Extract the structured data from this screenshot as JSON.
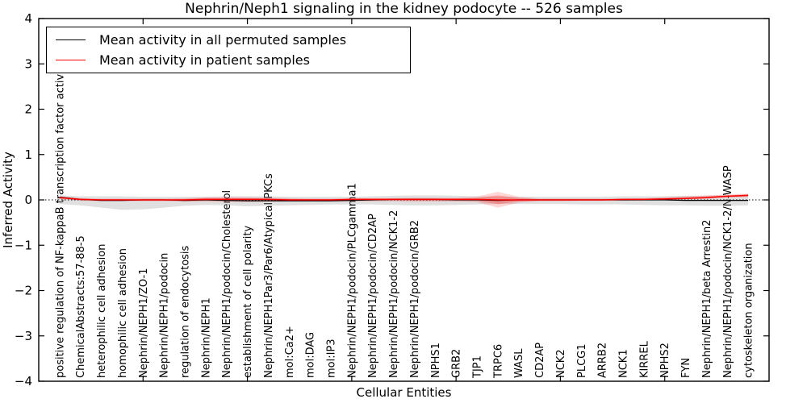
{
  "figure": {
    "background": "#ffffff"
  },
  "legend": {
    "entries": [
      {
        "label": "Mean activity in all permuted samples",
        "color": "#000000"
      },
      {
        "label": "Mean activity in patient samples",
        "color": "#ff0000"
      }
    ]
  },
  "chart_data": {
    "type": "line",
    "title": "Nephrin/Neph1 signaling in the kidney podocyte -- 526 samples",
    "xlabel": "Cellular Entities",
    "ylabel": "Inferred Activity",
    "ylim": [
      -4,
      4
    ],
    "yticks": [
      4,
      3,
      2,
      1,
      0,
      -1,
      -2,
      -3,
      -4
    ],
    "ytick_labels": [
      "4",
      "3",
      "2",
      "1",
      "0",
      "−1",
      "−2",
      "−3",
      "−4"
    ],
    "xtick_every": 5,
    "grid": false,
    "legend_position": "upper left",
    "zero_line": {
      "style": "dotted",
      "color": "#000000"
    },
    "categories": [
      "positive regulation of NF-kappaB transcription factor activity",
      "ChemicalAbstracts:57-88-5",
      "heterophilic cell adhesion",
      "homophilic cell adhesion",
      "Nephrin/NEPH1/ZO-1",
      "Nephrin/NEPH1/podocin",
      "regulation of endocytosis",
      "Nephrin/NEPH1",
      "Nephrin/NEPH1/podocin/Cholesterol",
      "establishment of cell polarity",
      "Nephrin/NEPH1Par3/Par6/Atypical PKCs",
      "mol:Ca2+",
      "mol:DAG",
      "mol:IP3",
      "Nephrin/NEPH1/podocin/PLCgamma1",
      "Nephrin/NEPH1/podocin/CD2AP",
      "Nephrin/NEPH1/podocin/NCK1-2",
      "Nephrin/NEPH1/podocin/GRB2",
      "NPHS1",
      "GRB2",
      "TJP1",
      "TRPC6",
      "WASL",
      "CD2AP",
      "NCK2",
      "PLCG1",
      "ARRB2",
      "NCK1",
      "KIRREL",
      "NPHS2",
      "FYN",
      "Nephrin/NEPH1/beta Arrestin2",
      "Nephrin/NEPH1/podocin/NCK1-2/N-WASP",
      "cytoskeleton organization"
    ],
    "series": [
      {
        "name": "Mean activity in all permuted samples",
        "color": "#000000",
        "line_width": 1.2,
        "values": [
          0.06,
          0.01,
          -0.01,
          -0.01,
          0.0,
          0.0,
          -0.01,
          0.0,
          -0.01,
          -0.02,
          -0.02,
          -0.02,
          -0.02,
          -0.02,
          -0.01,
          0.0,
          0.01,
          0.01,
          0.01,
          0.0,
          0.0,
          -0.01,
          0.0,
          0.0,
          0.0,
          0.0,
          0.0,
          0.0,
          0.0,
          0.0,
          -0.01,
          -0.01,
          -0.01,
          -0.01
        ],
        "band": {
          "upper": [
            0.1,
            0.08,
            0.08,
            0.08,
            0.07,
            0.07,
            0.07,
            0.07,
            0.08,
            0.08,
            0.08,
            0.07,
            0.07,
            0.07,
            0.07,
            0.08,
            0.09,
            0.1,
            0.1,
            0.09,
            0.08,
            0.07,
            0.07,
            0.07,
            0.07,
            0.07,
            0.07,
            0.08,
            0.08,
            0.08,
            0.09,
            0.09,
            0.1,
            0.1
          ],
          "lower": [
            -0.09,
            -0.12,
            -0.17,
            -0.22,
            -0.21,
            -0.17,
            -0.13,
            -0.11,
            -0.12,
            -0.14,
            -0.13,
            -0.12,
            -0.11,
            -0.1,
            -0.1,
            -0.1,
            -0.11,
            -0.12,
            -0.12,
            -0.11,
            -0.1,
            -0.09,
            -0.09,
            -0.09,
            -0.09,
            -0.1,
            -0.1,
            -0.1,
            -0.11,
            -0.12,
            -0.12,
            -0.13,
            -0.13,
            -0.12
          ],
          "color": "#999999",
          "opacity": 0.3
        }
      },
      {
        "name": "Mean activity in patient samples",
        "color": "#ff0000",
        "line_width": 1.5,
        "values": [
          0.05,
          0.01,
          0.0,
          0.0,
          0.0,
          0.0,
          0.0,
          0.01,
          0.01,
          0.01,
          0.01,
          0.0,
          0.0,
          0.0,
          0.01,
          0.01,
          0.01,
          0.01,
          0.01,
          0.01,
          0.01,
          0.0,
          0.0,
          0.0,
          0.0,
          0.0,
          0.0,
          0.01,
          0.01,
          0.02,
          0.03,
          0.05,
          0.08,
          0.1
        ],
        "band": {
          "upper": [
            0.08,
            0.04,
            0.03,
            0.03,
            0.03,
            0.03,
            0.04,
            0.06,
            0.06,
            0.06,
            0.05,
            0.04,
            0.03,
            0.03,
            0.04,
            0.04,
            0.04,
            0.05,
            0.05,
            0.05,
            0.07,
            0.18,
            0.07,
            0.03,
            0.03,
            0.03,
            0.03,
            0.03,
            0.04,
            0.06,
            0.08,
            0.1,
            0.12,
            0.14
          ],
          "lower": [
            0.02,
            -0.02,
            -0.03,
            -0.03,
            -0.03,
            -0.03,
            -0.04,
            -0.04,
            -0.05,
            -0.05,
            -0.04,
            -0.03,
            -0.03,
            -0.03,
            -0.03,
            -0.03,
            -0.03,
            -0.04,
            -0.04,
            -0.04,
            -0.05,
            -0.17,
            -0.06,
            -0.03,
            -0.03,
            -0.02,
            -0.02,
            -0.02,
            -0.01,
            0.0,
            0.01,
            0.02,
            0.05,
            0.06
          ],
          "color": "#ff0000",
          "opacity": 0.16
        }
      }
    ]
  }
}
